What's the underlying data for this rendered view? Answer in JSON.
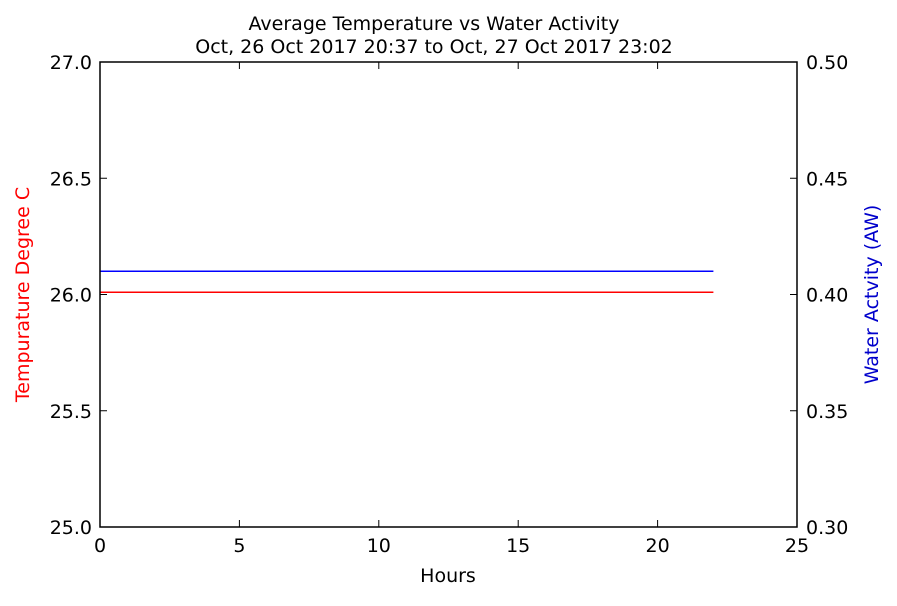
{
  "chart_data": {
    "type": "line",
    "title": "Average Temperature vs Water Activity",
    "subtitle": "Oct, 26 Oct 2017 20:37 to Oct, 27 Oct 2017 23:02",
    "xlabel": "Hours",
    "ylabel_left": "Tempurature Degree C",
    "ylabel_right": "Water Actvity (AW)",
    "xlim": [
      0,
      25
    ],
    "ylim_left": [
      25.0,
      27.0
    ],
    "ylim_right": [
      0.3,
      0.5
    ],
    "x_ticks": [
      "0",
      "5",
      "10",
      "15",
      "20",
      "25"
    ],
    "y_left_ticks": [
      "25.0",
      "25.5",
      "26.0",
      "26.5",
      "27.0"
    ],
    "y_right_ticks": [
      "0.30",
      "0.35",
      "0.40",
      "0.45",
      "0.50"
    ],
    "grid": false,
    "series": [
      {
        "axis": "left",
        "color": "#ff0000",
        "x": [
          0,
          22
        ],
        "y": [
          26.01,
          26.01
        ]
      },
      {
        "axis": "right",
        "color": "#0000ff",
        "x": [
          0,
          22
        ],
        "y": [
          0.41,
          0.41
        ]
      }
    ],
    "colors": {
      "left_axis_label": "#ff0000",
      "right_axis_label": "#0000cc"
    }
  }
}
